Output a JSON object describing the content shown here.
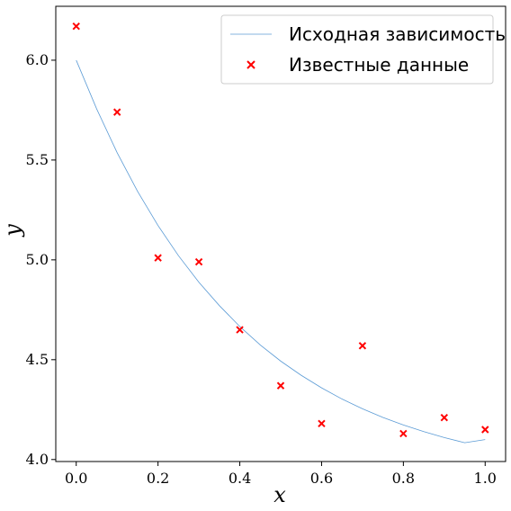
{
  "chart_data": {
    "type": "line",
    "title": "",
    "xlabel": "x",
    "ylabel": "y",
    "xlim": [
      -0.05,
      1.05
    ],
    "ylim": [
      3.99,
      6.27
    ],
    "x_ticks": [
      0.0,
      0.2,
      0.4,
      0.6,
      0.8,
      1.0
    ],
    "x_tick_labels": [
      "0.0",
      "0.2",
      "0.4",
      "0.6",
      "0.8",
      "1.0"
    ],
    "y_ticks": [
      4.0,
      4.5,
      5.0,
      5.5,
      6.0
    ],
    "y_tick_labels": [
      "4.0",
      "4.5",
      "5.0",
      "5.5",
      "6.0"
    ],
    "grid": false,
    "legend_position": "top-right",
    "series": [
      {
        "name": "Исходная зависимость",
        "type": "line",
        "color": "#5b9bd5",
        "x": [
          0.0,
          0.05,
          0.1,
          0.15,
          0.2,
          0.25,
          0.3,
          0.35,
          0.4,
          0.45,
          0.5,
          0.55,
          0.6,
          0.65,
          0.7,
          0.75,
          0.8,
          0.85,
          0.9,
          0.95,
          1.0
        ],
        "y": [
          6.0,
          5.756,
          5.537,
          5.343,
          5.172,
          5.021,
          4.888,
          4.771,
          4.666,
          4.574,
          4.493,
          4.422,
          4.359,
          4.303,
          4.254,
          4.211,
          4.173,
          4.14,
          4.11,
          4.084,
          4.1
        ]
      },
      {
        "name": "Известные данные",
        "type": "scatter",
        "marker": "x",
        "color": "#ff0000",
        "x": [
          0.0,
          0.1,
          0.2,
          0.3,
          0.4,
          0.5,
          0.6,
          0.7,
          0.8,
          0.9,
          1.0
        ],
        "y": [
          6.17,
          5.74,
          5.01,
          4.99,
          4.65,
          4.37,
          4.18,
          4.57,
          4.13,
          4.21,
          4.15
        ]
      }
    ]
  }
}
